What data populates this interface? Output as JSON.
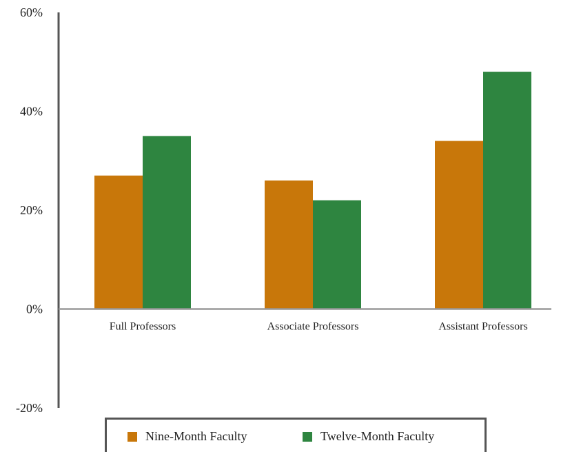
{
  "chart_data": {
    "type": "bar",
    "categories": [
      "Full Professors",
      "Associate Professors",
      "Assistant Professors"
    ],
    "series": [
      {
        "name": "Nine-Month Faculty",
        "values": [
          27,
          26,
          34
        ],
        "color": "#C8770A"
      },
      {
        "name": "Twelve-Month Faculty",
        "values": [
          35,
          22,
          48
        ],
        "color": "#2E8540"
      }
    ],
    "yticks": [
      "-20%",
      "0%",
      "20%",
      "40%",
      "60%"
    ],
    "ytick_values": [
      -20,
      0,
      20,
      40,
      60
    ],
    "ylim": [
      -20,
      60
    ],
    "title": "",
    "xlabel": "",
    "ylabel": "",
    "grid": false,
    "legend_position": "bottom"
  },
  "legend": {
    "items": [
      {
        "label": "Nine-Month Faculty",
        "color": "#C8770A"
      },
      {
        "label": "Twelve-Month Faculty",
        "color": "#2E8540"
      }
    ]
  }
}
